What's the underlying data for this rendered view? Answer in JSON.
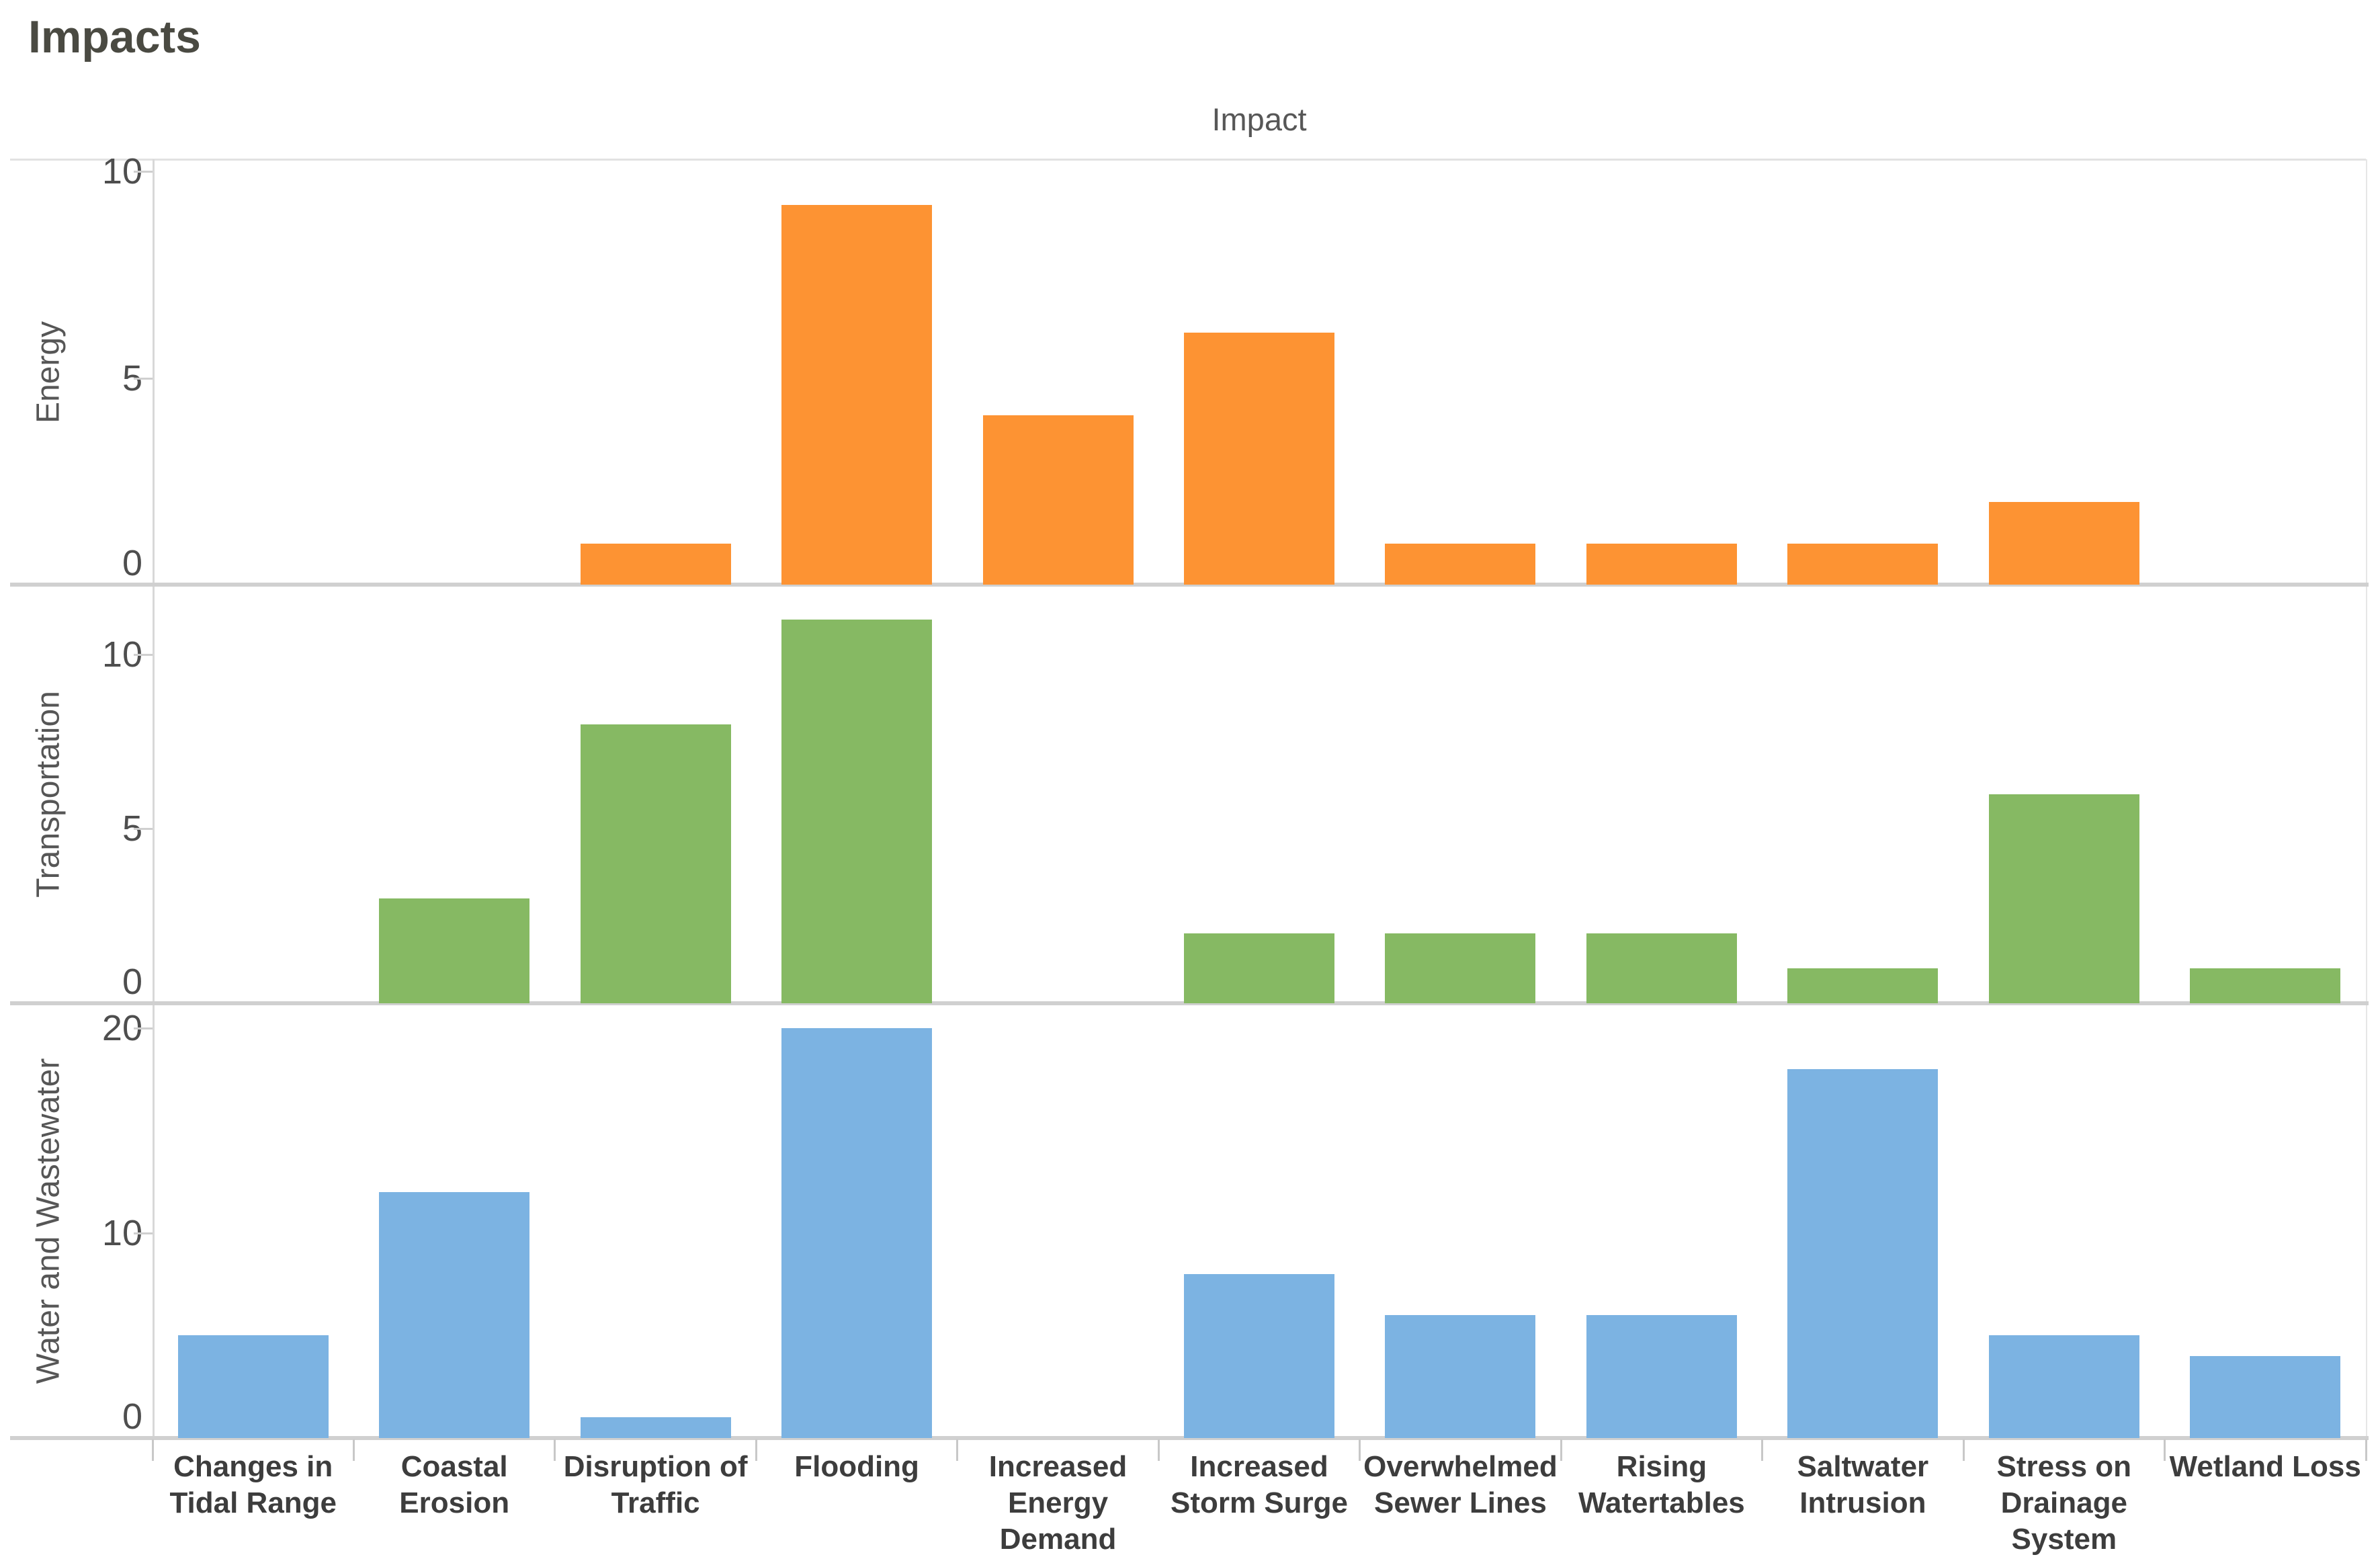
{
  "page_title": "Impacts",
  "column_header": "Impact",
  "chart_data": {
    "type": "bar",
    "layout": "faceted-rows",
    "title": "Impacts",
    "column_axis_title": "Impact",
    "legend": "none",
    "grid": "panel-borders-only",
    "categories": [
      "Changes in Tidal Range",
      "Coastal Erosion",
      "Disruption of Traffic",
      "Flooding",
      "Increased Energy Demand",
      "Increased Storm Surge",
      "Overwhelmed Sewer Lines",
      "Rising Watertables",
      "Saltwater Intrusion",
      "Stress on Drainage System",
      "Wetland Loss"
    ],
    "series": [
      {
        "name": "Energy",
        "color": "#fd9333",
        "ticks": [
          0,
          5,
          10
        ],
        "ylim": [
          0,
          10.3
        ],
        "values": [
          0,
          0,
          1,
          9.2,
          4.1,
          6.1,
          1,
          1,
          1,
          2,
          0
        ]
      },
      {
        "name": "Transportation",
        "color": "#86b963",
        "ticks": [
          0,
          5,
          10
        ],
        "ylim": [
          0,
          12
        ],
        "values": [
          0,
          3,
          8,
          11,
          0,
          2,
          2,
          2,
          1,
          6,
          1
        ]
      },
      {
        "name": "Water and Wastewater",
        "color": "#7cb3e2",
        "ticks": [
          0,
          10,
          20
        ],
        "ylim": [
          0,
          21.2
        ],
        "values": [
          5,
          12,
          1,
          20,
          0,
          8,
          6,
          6,
          18,
          5,
          4
        ]
      }
    ]
  },
  "colors": {
    "bar_orange": "#fd9333",
    "bar_green": "#86b963",
    "bar_blue": "#7cb3e2",
    "title_text": "#4a4a42",
    "axis_text": "#565656",
    "tick_text": "#4e4e4e",
    "category_text": "#3d3d3d",
    "divider": "#d0d0d0",
    "panel_border": "#e2e2e2"
  }
}
